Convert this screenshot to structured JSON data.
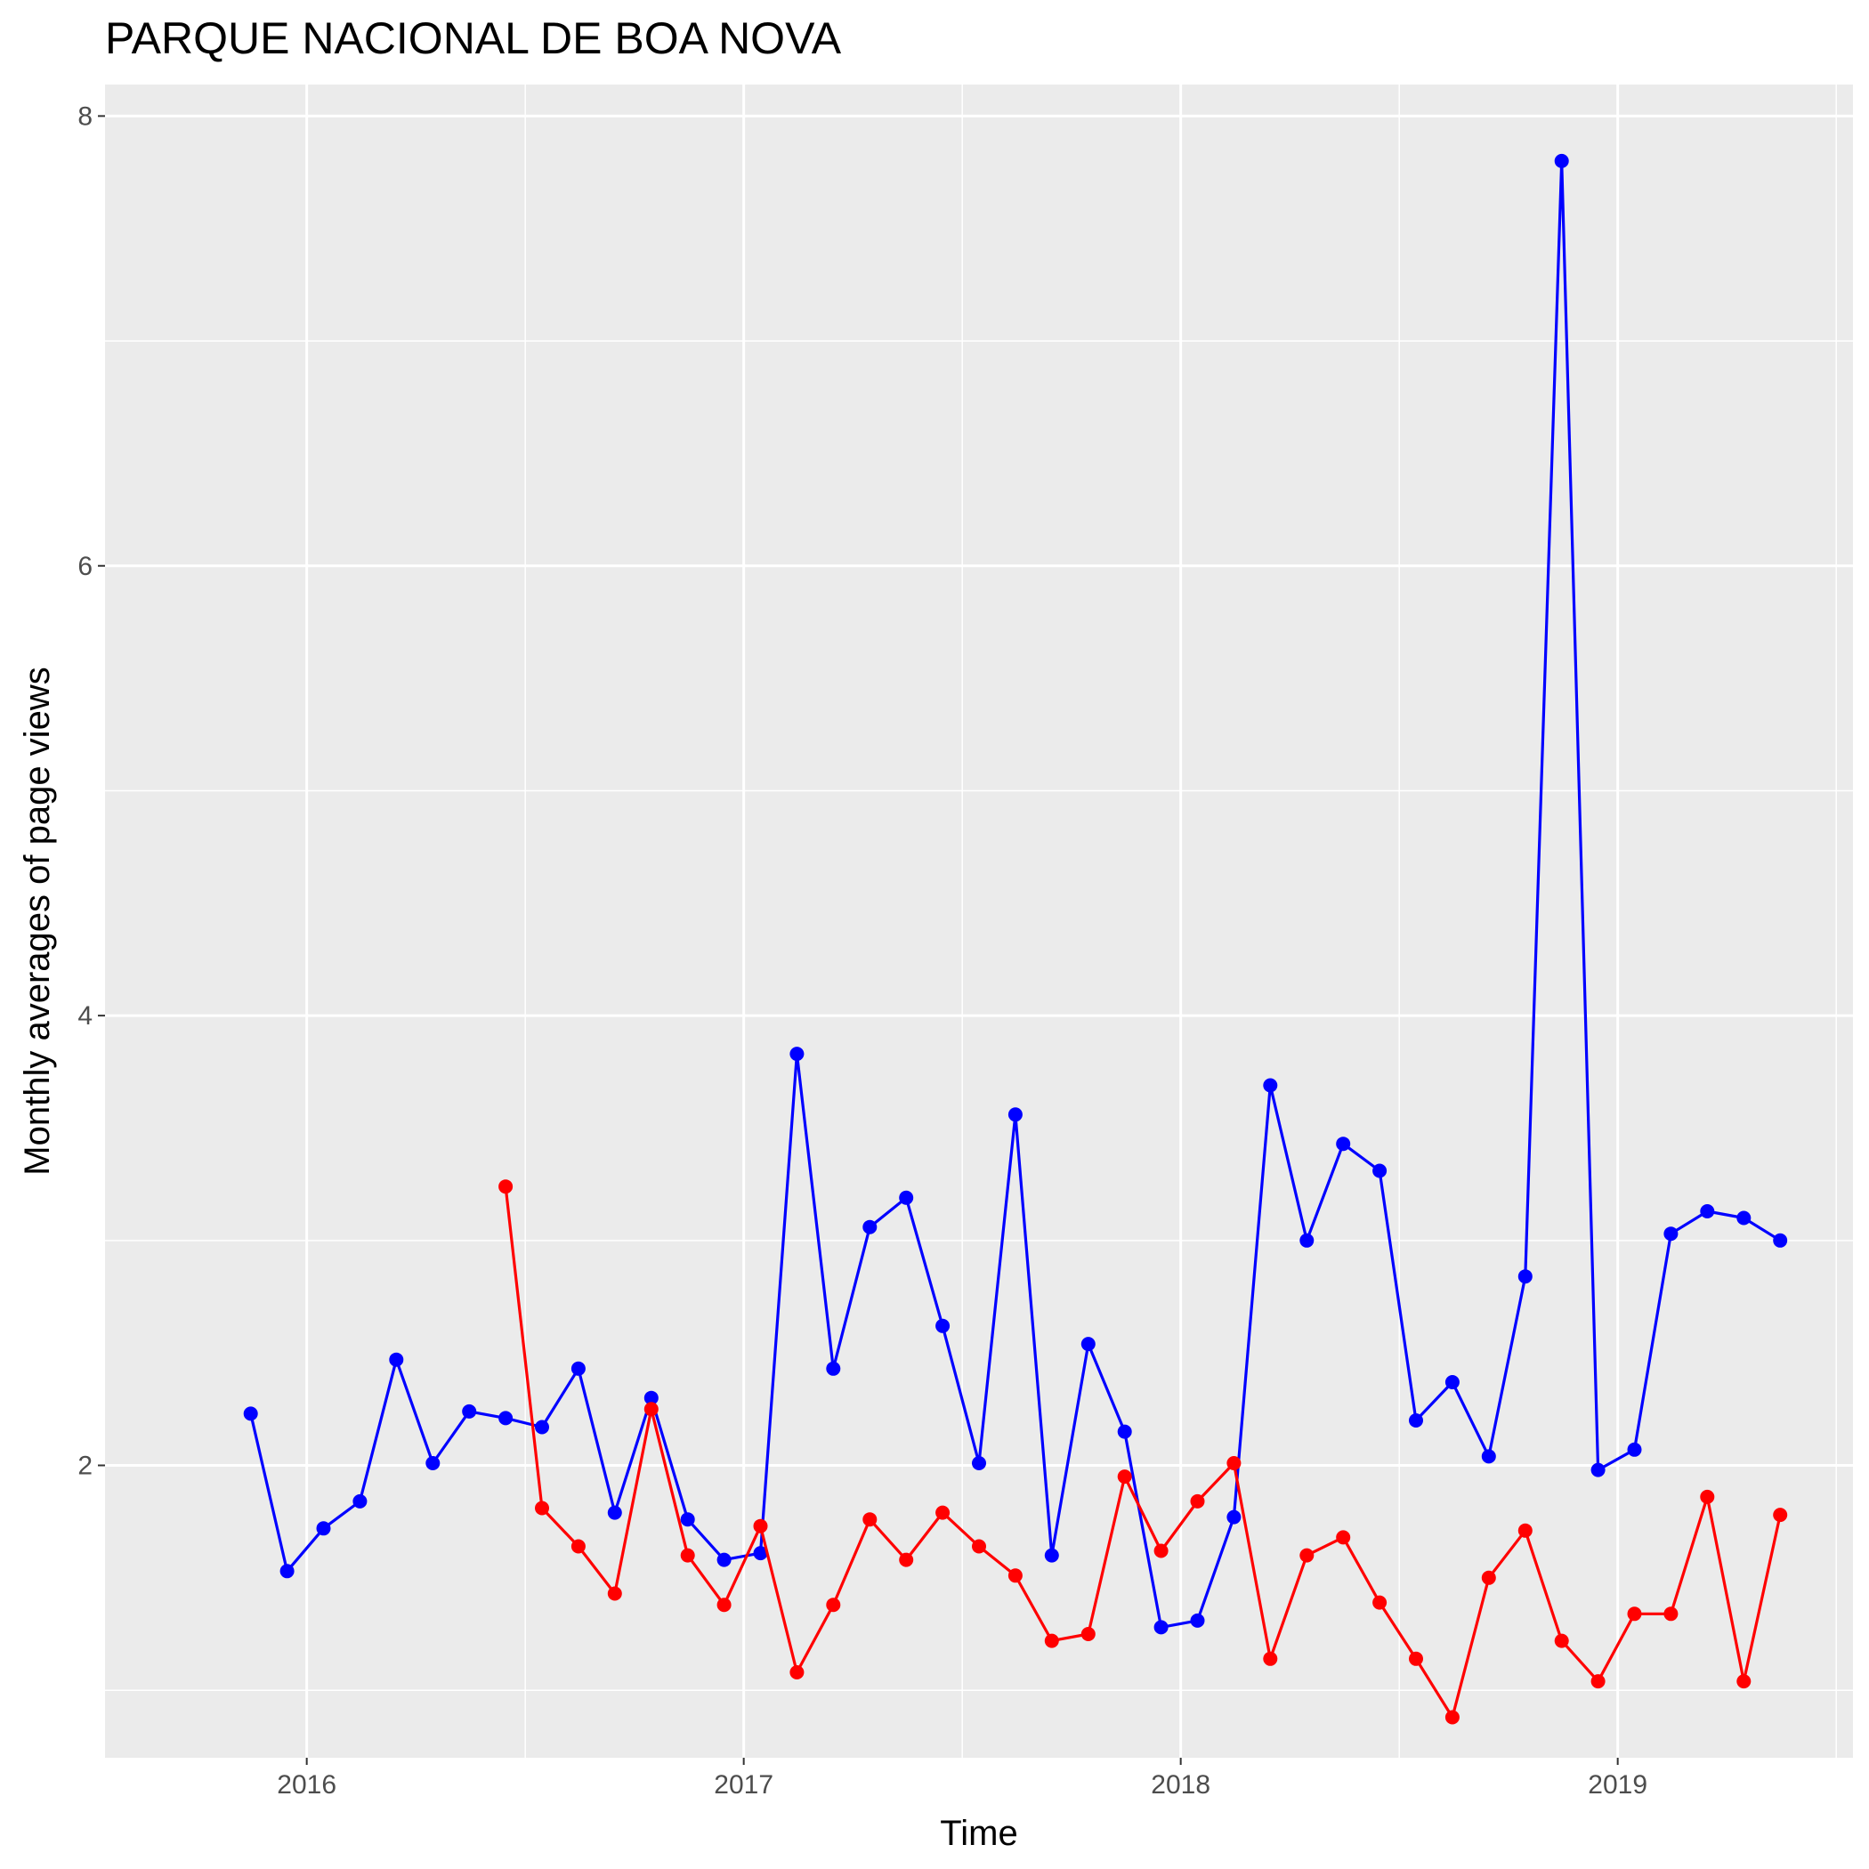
{
  "chart_data": {
    "type": "line",
    "title": "PARQUE NACIONAL DE BOA NOVA",
    "xlabel": "Time",
    "ylabel": "Monthly averages of page views",
    "xlim": [
      "2015-07-15",
      "2019-07-15"
    ],
    "ylim": [
      0.7,
      8.14
    ],
    "x_ticks": [
      "2016",
      "2017",
      "2018",
      "2019"
    ],
    "y_ticks": [
      "2",
      "4",
      "6",
      "8"
    ],
    "grid": true,
    "legend": "none",
    "series": [
      {
        "color": "#0000ff",
        "points": [
          [
            "2015-11",
            2.23
          ],
          [
            "2015-12",
            1.53
          ],
          [
            "2016-01",
            1.72
          ],
          [
            "2016-02",
            1.84
          ],
          [
            "2016-03",
            2.47
          ],
          [
            "2016-04",
            2.01
          ],
          [
            "2016-05",
            2.24
          ],
          [
            "2016-06",
            2.21
          ],
          [
            "2016-07",
            2.17
          ],
          [
            "2016-08",
            2.43
          ],
          [
            "2016-09",
            1.79
          ],
          [
            "2016-10",
            2.3
          ],
          [
            "2016-11",
            1.76
          ],
          [
            "2016-12",
            1.58
          ],
          [
            "2017-01",
            1.61
          ],
          [
            "2017-02",
            3.83
          ],
          [
            "2017-03",
            2.43
          ],
          [
            "2017-04",
            3.06
          ],
          [
            "2017-05",
            3.19
          ],
          [
            "2017-06",
            2.62
          ],
          [
            "2017-07",
            2.01
          ],
          [
            "2017-08",
            3.56
          ],
          [
            "2017-09",
            1.6
          ],
          [
            "2017-10",
            2.54
          ],
          [
            "2017-11",
            2.15
          ],
          [
            "2017-12",
            1.28
          ],
          [
            "2018-01",
            1.31
          ],
          [
            "2018-02",
            1.77
          ],
          [
            "2018-03",
            3.69
          ],
          [
            "2018-04",
            3.0
          ],
          [
            "2018-05",
            3.43
          ],
          [
            "2018-06",
            3.31
          ],
          [
            "2018-07",
            2.2
          ],
          [
            "2018-08",
            2.37
          ],
          [
            "2018-09",
            2.04
          ],
          [
            "2018-10",
            2.84
          ],
          [
            "2018-11",
            7.8
          ],
          [
            "2018-12",
            1.98
          ],
          [
            "2019-01",
            2.07
          ],
          [
            "2019-02",
            3.03
          ],
          [
            "2019-03",
            3.13
          ],
          [
            "2019-04",
            3.1
          ],
          [
            "2019-05",
            3.0
          ]
        ]
      },
      {
        "color": "#ff0000",
        "points": [
          [
            "2016-06",
            3.24
          ],
          [
            "2016-07",
            1.81
          ],
          [
            "2016-08",
            1.64
          ],
          [
            "2016-09",
            1.43
          ],
          [
            "2016-10",
            2.25
          ],
          [
            "2016-11",
            1.6
          ],
          [
            "2016-12",
            1.38
          ],
          [
            "2017-01",
            1.73
          ],
          [
            "2017-02",
            1.08
          ],
          [
            "2017-03",
            1.38
          ],
          [
            "2017-04",
            1.76
          ],
          [
            "2017-05",
            1.58
          ],
          [
            "2017-06",
            1.79
          ],
          [
            "2017-07",
            1.64
          ],
          [
            "2017-08",
            1.51
          ],
          [
            "2017-09",
            1.22
          ],
          [
            "2017-10",
            1.25
          ],
          [
            "2017-11",
            1.95
          ],
          [
            "2017-12",
            1.62
          ],
          [
            "2018-01",
            1.84
          ],
          [
            "2018-02",
            2.01
          ],
          [
            "2018-03",
            1.14
          ],
          [
            "2018-04",
            1.6
          ],
          [
            "2018-05",
            1.68
          ],
          [
            "2018-06",
            1.39
          ],
          [
            "2018-07",
            1.14
          ],
          [
            "2018-08",
            0.88
          ],
          [
            "2018-09",
            1.5
          ],
          [
            "2018-10",
            1.71
          ],
          [
            "2018-11",
            1.22
          ],
          [
            "2018-12",
            1.04
          ],
          [
            "2019-01",
            1.34
          ],
          [
            "2019-02",
            1.34
          ],
          [
            "2019-03",
            1.86
          ],
          [
            "2019-04",
            1.04
          ],
          [
            "2019-05",
            1.78
          ]
        ]
      }
    ]
  }
}
